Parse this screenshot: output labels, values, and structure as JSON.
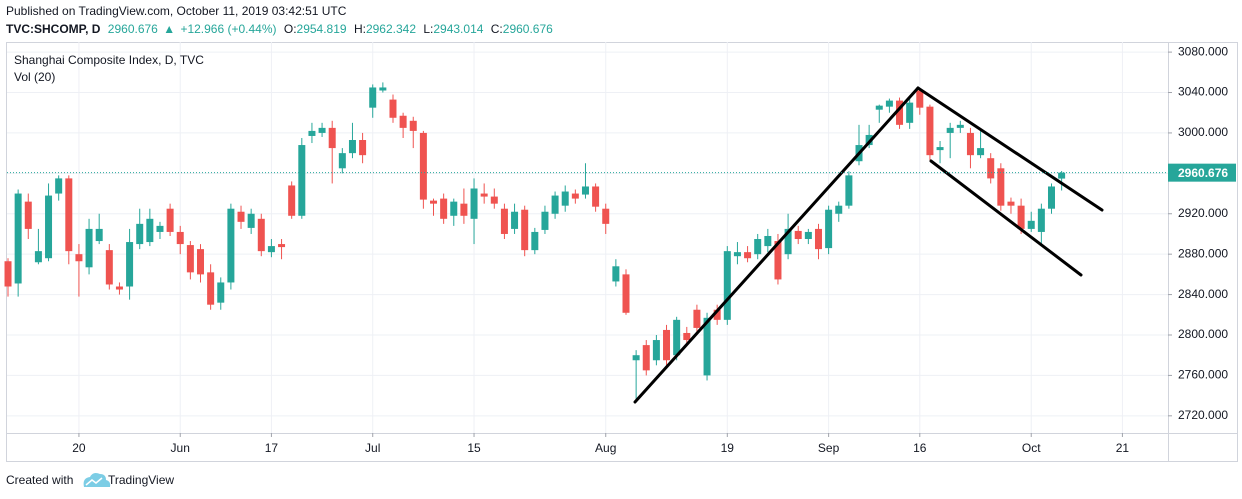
{
  "published": "Published on TradingView.com, October 11, 2019 03:42:51 UTC",
  "symbol": "TVC:SHCOMP, D",
  "change": "+12.966 (+0.44%)",
  "ohlc_labels": [
    "O:",
    "H:",
    "L:",
    "C:"
  ],
  "footer": {
    "created": "Created with",
    "brand": "TradingView"
  },
  "chart_data": {
    "type": "candlestick",
    "title": "Shanghai Composite Index, D, TVC",
    "subtitle": "Vol (20)",
    "up_color": "#26a69a",
    "down_color": "#ef5350",
    "open": [
      2873,
      2851,
      2932,
      2872,
      2876,
      2940,
      2955,
      2880,
      2867,
      2893,
      2884,
      2848,
      2848,
      2890,
      2892,
      2902,
      2925,
      2902,
      2889,
      2885,
      2862,
      2832,
      2852,
      2922,
      2906,
      2915,
      2882,
      2890,
      2948,
      2918,
      2997,
      3000,
      3005,
      2965,
      2980,
      2993,
      3025,
      3042,
      3033,
      3017,
      3012,
      3000,
      2933,
      2935,
      2918,
      2930,
      2915,
      2940,
      2937,
      2925,
      2905,
      2924,
      2884,
      2904,
      2920,
      2928,
      2940,
      2939,
      2947,
      2925,
      2853,
      2860,
      2775,
      2790,
      2775,
      2805,
      2780,
      2802,
      2825,
      2760,
      2825,
      2815,
      2878,
      2882,
      2880,
      2888,
      2893,
      2880,
      2903,
      2895,
      2905,
      2886,
      2920,
      2928,
      2972,
      2988,
      3023,
      3026,
      3032,
      3010,
      3042,
      3026,
      2983,
      3000,
      3005,
      3000,
      2978,
      2975,
      2965,
      2932,
      2928,
      2905,
      2902,
      2925,
      2954.819
    ],
    "high": [
      2876,
      2944,
      2940,
      2905,
      2950,
      2958,
      2958,
      2890,
      2915,
      2920,
      2890,
      2852,
      2905,
      2925,
      2925,
      2912,
      2930,
      2908,
      2893,
      2890,
      2870,
      2857,
      2930,
      2928,
      2925,
      2920,
      2895,
      2895,
      2952,
      2995,
      3010,
      3010,
      3012,
      2985,
      3010,
      3000,
      3048,
      3050,
      3038,
      3020,
      3016,
      3002,
      2935,
      2940,
      2935,
      2945,
      2955,
      2950,
      2945,
      2930,
      2930,
      2928,
      2906,
      2928,
      2942,
      2948,
      2944,
      2970,
      2950,
      2930,
      2875,
      2865,
      2785,
      2795,
      2800,
      2810,
      2818,
      2808,
      2830,
      2822,
      2830,
      2888,
      2892,
      2888,
      2900,
      2905,
      2900,
      2920,
      2908,
      2905,
      2910,
      2928,
      2932,
      2962,
      3008,
      3008,
      3028,
      3034,
      3035,
      3035,
      3043,
      3028,
      2992,
      3010,
      3012,
      3005,
      3002,
      2980,
      2970,
      2936,
      2935,
      2922,
      2930,
      2950,
      2962.342
    ],
    "low": [
      2838,
      2838,
      2895,
      2870,
      2873,
      2933,
      2870,
      2838,
      2860,
      2890,
      2845,
      2840,
      2835,
      2885,
      2888,
      2895,
      2898,
      2880,
      2855,
      2852,
      2825,
      2825,
      2845,
      2905,
      2900,
      2878,
      2877,
      2875,
      2915,
      2915,
      2990,
      2996,
      2950,
      2960,
      2975,
      2970,
      3015,
      3040,
      3010,
      2995,
      2985,
      2925,
      2918,
      2910,
      2908,
      2910,
      2890,
      2930,
      2925,
      2895,
      2900,
      2878,
      2880,
      2900,
      2915,
      2922,
      2930,
      2935,
      2922,
      2900,
      2848,
      2820,
      2734,
      2760,
      2770,
      2770,
      2775,
      2790,
      2800,
      2755,
      2810,
      2810,
      2870,
      2872,
      2875,
      2882,
      2850,
      2875,
      2890,
      2890,
      2875,
      2880,
      2912,
      2925,
      2968,
      2985,
      3010,
      3020,
      3004,
      3004,
      3018,
      2973,
      2970,
      2975,
      3000,
      2965,
      2975,
      2950,
      2923,
      2920,
      2900,
      2902,
      2890,
      2920,
      2943.014
    ],
    "close": [
      2848,
      2940,
      2905,
      2883,
      2938,
      2955,
      2883,
      2873,
      2905,
      2905,
      2850,
      2845,
      2892,
      2910,
      2915,
      2908,
      2902,
      2890,
      2862,
      2860,
      2830,
      2852,
      2925,
      2912,
      2920,
      2883,
      2888,
      2887,
      2918,
      2988,
      3002,
      3005,
      2985,
      2980,
      2993,
      2978,
      3045,
      3045,
      3015,
      3005,
      3002,
      2934,
      2930,
      2915,
      2932,
      2918,
      2945,
      2937,
      2930,
      2900,
      2922,
      2884,
      2902,
      2922,
      2938,
      2942,
      2935,
      2947,
      2927,
      2910,
      2868,
      2822,
      2780,
      2765,
      2795,
      2775,
      2815,
      2795,
      2807,
      2817,
      2815,
      2883,
      2882,
      2876,
      2895,
      2898,
      2855,
      2905,
      2895,
      2902,
      2885,
      2924,
      2928,
      2958,
      2988,
      2998,
      3027,
      3032,
      3008,
      3030,
      3025,
      2978,
      2986,
      3005,
      3008,
      2978,
      2985,
      2955,
      2928,
      2928,
      2905,
      2913,
      2925,
      2947,
      2960.676
    ],
    "xlim": [
      -0.1,
      114.5
    ],
    "xticks": [
      {
        "value": 7,
        "label": "20"
      },
      {
        "value": 17,
        "label": "Jun"
      },
      {
        "value": 26,
        "label": "17"
      },
      {
        "value": 36,
        "label": "Jul"
      },
      {
        "value": 46,
        "label": "15"
      },
      {
        "value": 59,
        "label": "Aug"
      },
      {
        "value": 71,
        "label": "19"
      },
      {
        "value": 81,
        "label": "Sep"
      },
      {
        "value": 90,
        "label": "16"
      },
      {
        "value": 101,
        "label": "Oct"
      },
      {
        "value": 110,
        "label": "21"
      }
    ],
    "ylim": [
      2703,
      3090
    ],
    "yticks": [
      {
        "value": 2720,
        "label": "2720.000"
      },
      {
        "value": 2760,
        "label": "2760.000"
      },
      {
        "value": 2800,
        "label": "2800.000"
      },
      {
        "value": 2840,
        "label": "2840.000"
      },
      {
        "value": 2880,
        "label": "2880.000"
      },
      {
        "value": 2920,
        "label": "2920.000"
      },
      {
        "value": 2960,
        "label": "2960.000"
      },
      {
        "value": 3000,
        "label": "3000.000"
      },
      {
        "value": 3040,
        "label": "3040.000"
      },
      {
        "value": 3080,
        "label": "3080.000"
      }
    ],
    "grid": true
  }
}
